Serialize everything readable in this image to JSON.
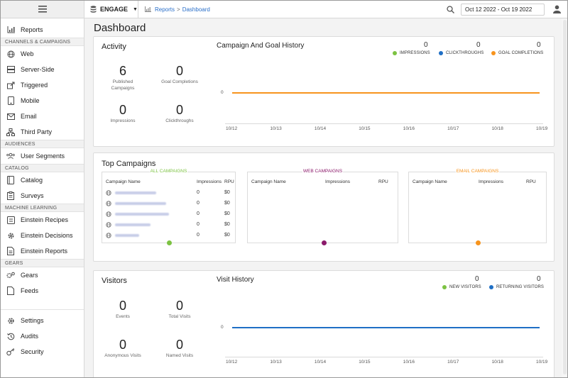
{
  "topbar": {
    "app_name": "ENGAGE",
    "breadcrumb_reports": "Reports",
    "breadcrumb_sep": ">",
    "breadcrumb_dashboard": "Dashboard",
    "date_range": "Oct 12 2022 - Oct 19 2022"
  },
  "sidebar": {
    "reports": "Reports",
    "sec_channels": "CHANNELS & CAMPAIGNS",
    "web": "Web",
    "server_side": "Server-Side",
    "triggered": "Triggered",
    "mobile": "Mobile",
    "email": "Email",
    "third_party": "Third Party",
    "sec_audiences": "AUDIENCES",
    "user_segments": "User Segments",
    "sec_catalog": "CATALOG",
    "catalog": "Catalog",
    "surveys": "Surveys",
    "sec_ml": "MACHINE LEARNING",
    "einstein_recipes": "Einstein Recipes",
    "einstein_decisions": "Einstein Decisions",
    "einstein_reports": "Einstein Reports",
    "sec_gears": "GEARS",
    "gears": "Gears",
    "feeds": "Feeds",
    "settings": "Settings",
    "audits": "Audits",
    "security": "Security"
  },
  "page": {
    "title": "Dashboard"
  },
  "activity": {
    "title": "Activity",
    "published_campaigns_value": "6",
    "published_campaigns_label": "Published Campaigns",
    "goal_completions_value": "0",
    "goal_completions_label": "Goal Completions",
    "impressions_value": "0",
    "impressions_label": "Impressions",
    "clickthroughs_value": "0",
    "clickthroughs_label": "Clickthroughs"
  },
  "campaign_history": {
    "title": "Campaign And Goal History",
    "impressions_value": "0",
    "impressions_label": "IMPRESSIONS",
    "impressions_color": "#7cc242",
    "clickthroughs_value": "0",
    "clickthroughs_label": "CLICKTHROUGHS",
    "clickthroughs_color": "#1f6fc5",
    "goal_value": "0",
    "goal_label": "GOAL COMPLETIONS",
    "goal_color": "#f7941d",
    "y_tick": "0",
    "x_ticks": [
      "10/12",
      "10/13",
      "10/14",
      "10/15",
      "10/16",
      "10/17",
      "10/18",
      "10/19"
    ]
  },
  "top_campaigns": {
    "title": "Top Campaigns",
    "all": {
      "title": "ALL CAMPAIGNS",
      "color": "#7cc242",
      "col_name": "Campaign Name",
      "col_impressions": "Impressions",
      "col_rpu": "RPU",
      "rows": [
        {
          "impressions": "0",
          "rpu": "$0"
        },
        {
          "impressions": "0",
          "rpu": "$0"
        },
        {
          "impressions": "0",
          "rpu": "$0"
        },
        {
          "impressions": "0",
          "rpu": "$0"
        },
        {
          "impressions": "0",
          "rpu": "$0"
        }
      ]
    },
    "web": {
      "title": "WEB CAMPAIGNS",
      "color": "#8b1a6b",
      "col_name": "Campaign Name",
      "col_impressions": "Impressions",
      "col_rpu": "RPU"
    },
    "email": {
      "title": "EMAIL CAMPAIGNS",
      "color": "#f7941d",
      "col_name": "Campaign Name",
      "col_impressions": "Impressions",
      "col_rpu": "RPU"
    }
  },
  "visitors": {
    "title": "Visitors",
    "events_value": "0",
    "events_label": "Events",
    "total_visits_value": "0",
    "total_visits_label": "Total Visits",
    "anon_value": "0",
    "anon_label": "Anonymous Visits",
    "named_value": "0",
    "named_label": "Named Visits"
  },
  "visit_history": {
    "title": "Visit History",
    "new_value": "0",
    "new_label": "NEW VISITORS",
    "new_color": "#7cc242",
    "returning_value": "0",
    "returning_label": "RETURNING VISITORS",
    "returning_color": "#1f6fc5",
    "y_tick": "0",
    "x_ticks": [
      "10/12",
      "10/13",
      "10/14",
      "10/15",
      "10/16",
      "10/17",
      "10/18",
      "10/19"
    ]
  }
}
